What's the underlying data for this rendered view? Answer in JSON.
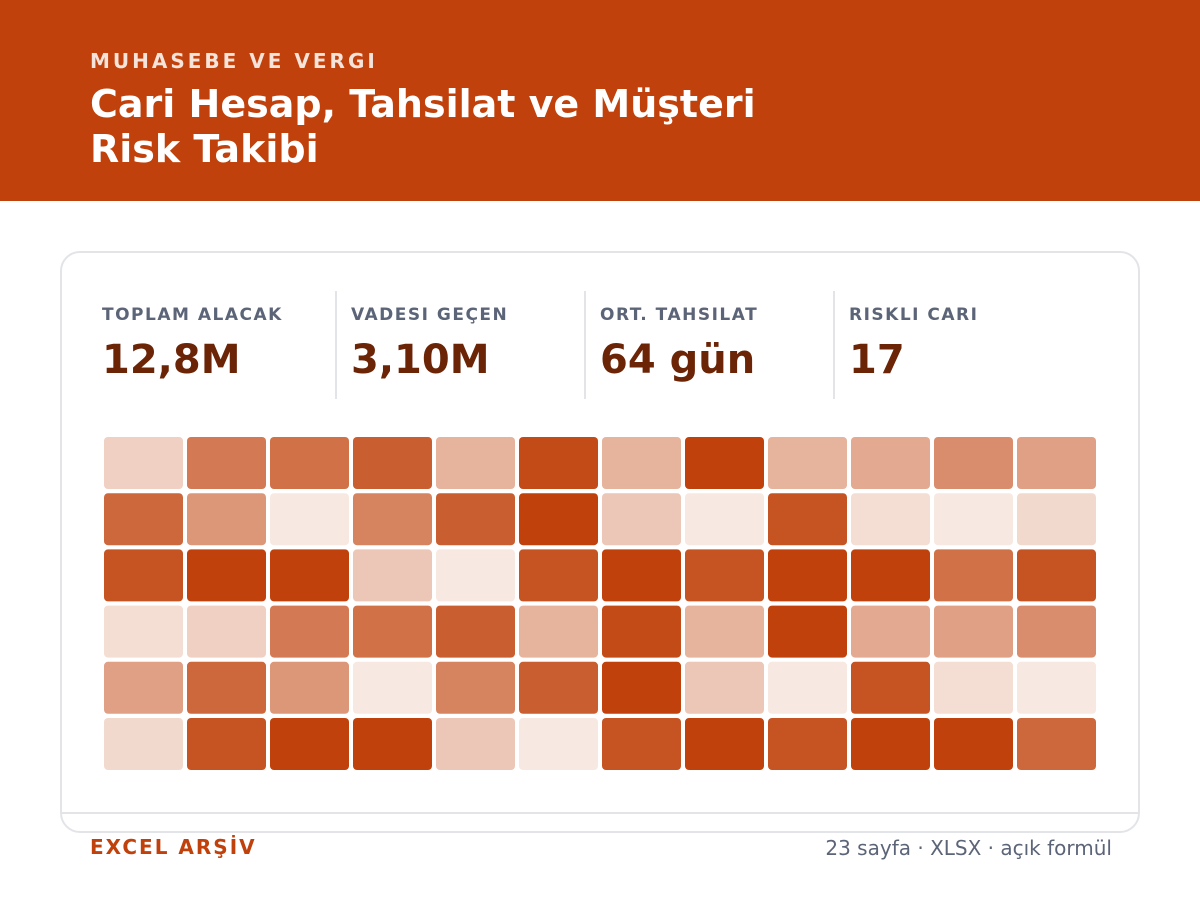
{
  "header": {
    "eyebrow": "MUHASEBE VE VERGI",
    "title": "Cari Hesap, Tahsilat ve Müşteri Risk Takibi"
  },
  "stats": [
    {
      "label": "TOPLAM ALACAK",
      "value": "12,8M"
    },
    {
      "label": "VADESI GEÇEN",
      "value": "3,10M"
    },
    {
      "label": "ORT. TAHSILAT",
      "value": "64 gün"
    },
    {
      "label": "RISKLI CARI",
      "value": "17"
    }
  ],
  "colors": {
    "accent": "#c0410b",
    "stat_value": "#6b2406",
    "muted": "#5c6478",
    "border": "#e2e4e8"
  },
  "heatmap": {
    "rows": 6,
    "cols": 12,
    "intensity": [
      [
        0.25,
        0.7,
        0.75,
        0.85,
        0.4,
        0.95,
        0.4,
        1.0,
        0.4,
        0.45,
        0.6,
        0.5
      ],
      [
        0.8,
        0.55,
        0.12,
        0.65,
        0.85,
        1.0,
        0.3,
        0.12,
        0.9,
        0.18,
        0.12,
        0.2
      ],
      [
        0.9,
        1.0,
        1.0,
        0.3,
        0.12,
        0.9,
        1.0,
        0.9,
        1.0,
        1.0,
        0.75,
        0.9
      ],
      [
        0.18,
        0.25,
        0.7,
        0.75,
        0.85,
        0.4,
        0.95,
        0.4,
        1.0,
        0.45,
        0.5,
        0.6
      ],
      [
        0.5,
        0.8,
        0.55,
        0.12,
        0.65,
        0.85,
        1.0,
        0.3,
        0.12,
        0.9,
        0.18,
        0.12
      ],
      [
        0.2,
        0.9,
        1.0,
        1.0,
        0.3,
        0.12,
        0.9,
        1.0,
        0.9,
        1.0,
        1.0,
        0.8
      ]
    ]
  },
  "footer": {
    "brand": "EXCEL ARŞİV",
    "meta": "23 sayfa · XLSX · açık formül"
  }
}
